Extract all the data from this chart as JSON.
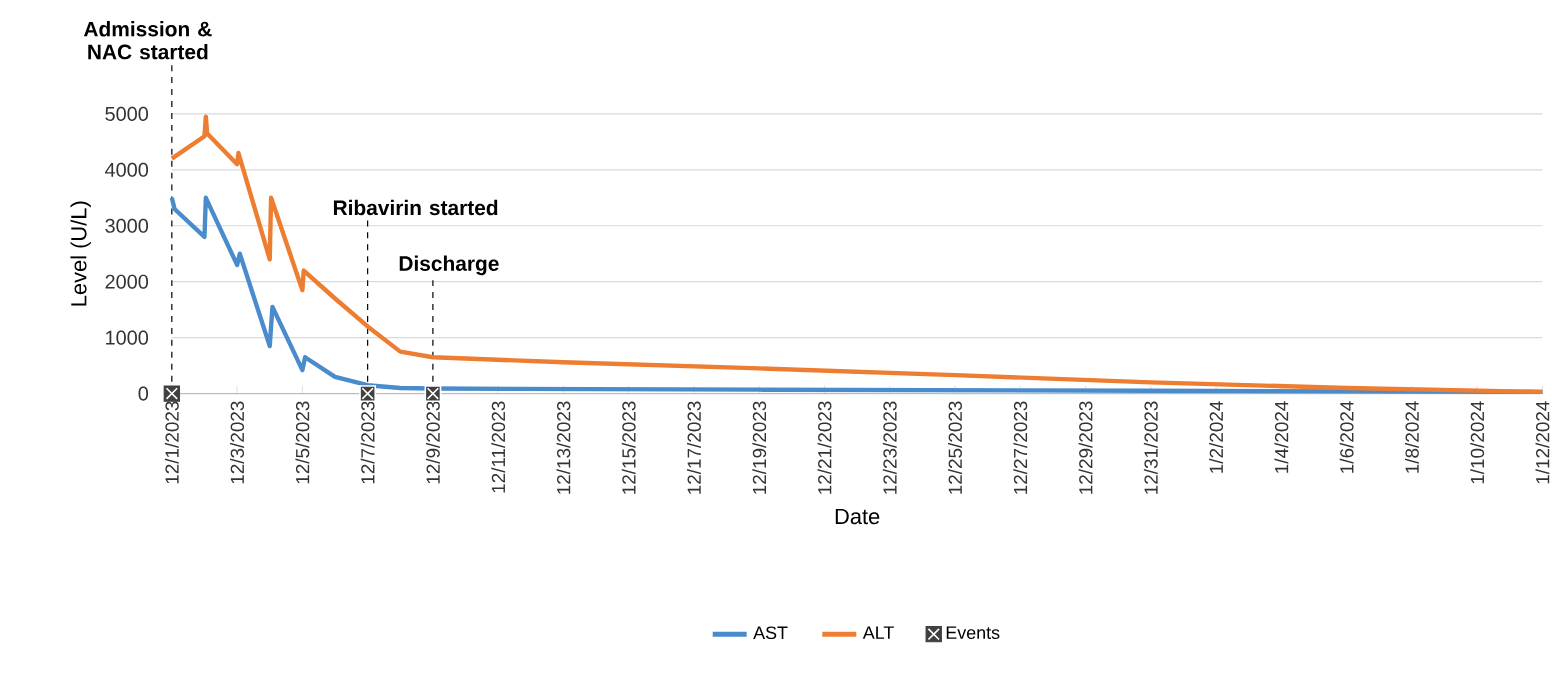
{
  "chart_data": {
    "type": "line",
    "xlabel": "Date",
    "ylabel": "Level (U/L)",
    "xlim": [
      "2023-12-01",
      "2024-01-12"
    ],
    "ylim": [
      0,
      5000
    ],
    "yticks": [
      0,
      1000,
      2000,
      3000,
      4000,
      5000
    ],
    "xticks": [
      {
        "value": "2023-12-01",
        "label": "12/1/2023"
      },
      {
        "value": "2023-12-03",
        "label": "12/3/2023"
      },
      {
        "value": "2023-12-05",
        "label": "12/5/2023"
      },
      {
        "value": "2023-12-07",
        "label": "12/7/2023"
      },
      {
        "value": "2023-12-09",
        "label": "12/9/2023"
      },
      {
        "value": "2023-12-11",
        "label": "12/11/2023"
      },
      {
        "value": "2023-12-13",
        "label": "12/13/2023"
      },
      {
        "value": "2023-12-15",
        "label": "12/15/2023"
      },
      {
        "value": "2023-12-17",
        "label": "12/17/2023"
      },
      {
        "value": "2023-12-19",
        "label": "12/19/2023"
      },
      {
        "value": "2023-12-21",
        "label": "12/21/2023"
      },
      {
        "value": "2023-12-23",
        "label": "12/23/2023"
      },
      {
        "value": "2023-12-25",
        "label": "12/25/2023"
      },
      {
        "value": "2023-12-27",
        "label": "12/27/2023"
      },
      {
        "value": "2023-12-29",
        "label": "12/29/2023"
      },
      {
        "value": "2023-12-31",
        "label": "12/31/2023"
      },
      {
        "value": "2024-01-02",
        "label": "1/2/2024"
      },
      {
        "value": "2024-01-04",
        "label": "1/4/2024"
      },
      {
        "value": "2024-01-06",
        "label": "1/6/2024"
      },
      {
        "value": "2024-01-08",
        "label": "1/8/2024"
      },
      {
        "value": "2024-01-10",
        "label": "1/10/2024"
      },
      {
        "value": "2024-01-12",
        "label": "1/12/2024"
      }
    ],
    "grid": "y",
    "legend": "bottom",
    "line_style": "solid",
    "series": [
      {
        "name": "AST",
        "color": "#4a8ccb",
        "marker": "none",
        "x": [
          "2023-12-01T00:00",
          "2023-12-01T02:00",
          "2023-12-02T00:00",
          "2023-12-02T01:00",
          "2023-12-03T00:00",
          "2023-12-03T02:00",
          "2023-12-04T00:00",
          "2023-12-04T02:00",
          "2023-12-05T00:00",
          "2023-12-05T02:00",
          "2023-12-06T00:00",
          "2023-12-07T00:00",
          "2023-12-08T00:00",
          "2023-12-09T00:00",
          "2023-12-19T00:00",
          "2023-12-31T00:00",
          "2024-01-12T00:00"
        ],
        "values": [
          3500,
          3300,
          2800,
          3500,
          2300,
          2500,
          850,
          1550,
          420,
          650,
          300,
          150,
          100,
          90,
          70,
          50,
          30
        ]
      },
      {
        "name": "ALT",
        "color": "#ed7d31",
        "marker": "none",
        "x": [
          "2023-12-01T00:00",
          "2023-12-02T00:00",
          "2023-12-02T01:00",
          "2023-12-02T02:00",
          "2023-12-03T00:00",
          "2023-12-03T01:00",
          "2023-12-04T00:00",
          "2023-12-04T01:00",
          "2023-12-05T00:00",
          "2023-12-05T01:00",
          "2023-12-06T00:00",
          "2023-12-07T00:00",
          "2023-12-08T00:00",
          "2023-12-09T00:00",
          "2023-12-13T00:00",
          "2023-12-19T00:00",
          "2023-12-25T00:00",
          "2023-12-31T00:00",
          "2024-01-06T00:00",
          "2024-01-12T00:00"
        ],
        "values": [
          4200,
          4600,
          4950,
          4650,
          4100,
          4300,
          2400,
          3500,
          1850,
          2200,
          1700,
          1200,
          750,
          650,
          560,
          450,
          330,
          200,
          100,
          30
        ]
      },
      {
        "name": "Events",
        "type": "scatter",
        "color": "#404040",
        "marker": "square",
        "x": [
          "2023-12-01",
          "2023-12-07",
          "2023-12-09"
        ],
        "values": [
          0,
          0,
          0
        ]
      }
    ],
    "ref_lines": [
      {
        "axis": "x",
        "value": "2023-12-01",
        "label": "Admission & NAC started",
        "line_style": "dashed",
        "color": "#000000"
      },
      {
        "axis": "x",
        "value": "2023-12-07",
        "label": "Ribavirin started",
        "line_style": "dashed",
        "color": "#000000"
      },
      {
        "axis": "x",
        "value": "2023-12-09",
        "label": "Discharge",
        "line_style": "dashed",
        "color": "#000000"
      }
    ]
  }
}
